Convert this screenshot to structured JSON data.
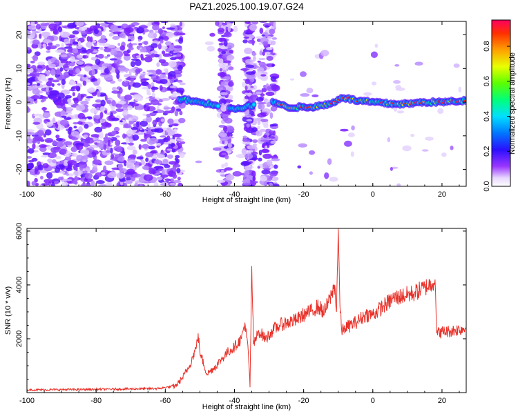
{
  "chart_data": [
    {
      "type": "heatmap",
      "title": "PAZ1.2025.100.19.07.G24",
      "xlabel": "Height of straight line (km)",
      "ylabel": "Frequency (Hz)",
      "xlim": [
        -100,
        27
      ],
      "ylim": [
        -25,
        24
      ],
      "xticks": [
        "-100",
        "-80",
        "-60",
        "-40",
        "-20",
        "0",
        "20"
      ],
      "yticks": [
        "-20",
        "-10",
        "0",
        "10",
        "20"
      ],
      "colorbar": {
        "label": "Normalized spectral amplitude",
        "range": [
          0,
          0.95
        ],
        "ticks": [
          "0.0",
          "0.2",
          "0.4",
          "0.6",
          "0.8"
        ],
        "colormap": "rainbow (white-magenta-purple-blue-cyan-green-yellow-orange-red)"
      },
      "features": {
        "noise_region_x": [
          -100,
          -55
        ],
        "noise_bands_x": [
          [
            -44,
            -41
          ],
          [
            -37,
            -34
          ],
          [
            -33,
            -28
          ]
        ],
        "signal_ridge": [
          {
            "x": -56,
            "y": 1
          },
          {
            "x": -50,
            "y": 0
          },
          {
            "x": -44,
            "y": -1
          },
          {
            "x": -39,
            "y": -2
          },
          {
            "x": -35,
            "y": -1
          },
          {
            "x": -28,
            "y": 0
          },
          {
            "x": -25,
            "y": -1.5
          },
          {
            "x": -18,
            "y": -1.5
          },
          {
            "x": -12,
            "y": -0.5
          },
          {
            "x": -9,
            "y": 1.5
          },
          {
            "x": -5,
            "y": 0.5
          },
          {
            "x": 0,
            "y": 0
          },
          {
            "x": 5,
            "y": -0.5
          },
          {
            "x": 10,
            "y": -0.5
          },
          {
            "x": 15,
            "y": 0
          },
          {
            "x": 20,
            "y": 0
          },
          {
            "x": 27,
            "y": 0.5
          }
        ]
      }
    },
    {
      "type": "line",
      "xlabel": "Height of straight line (km)",
      "ylabel": "SNR (10 * v/v)",
      "xlim": [
        -100,
        27
      ],
      "ylim": [
        0,
        6100
      ],
      "xticks": [
        "-100",
        "-80",
        "-60",
        "-40",
        "-20",
        "0",
        "20"
      ],
      "yticks": [
        "2000",
        "4000",
        "6000"
      ],
      "color": "#e8322a",
      "series": [
        {
          "x": [
            -100,
            -80,
            -62,
            -57,
            -55,
            -53,
            -51,
            -50.5,
            -50,
            -48,
            -46,
            -44,
            -42,
            -40,
            -38,
            -37,
            -36,
            -35.5,
            -35,
            -34.5,
            -34,
            -33,
            -31,
            -29,
            -27,
            -25,
            -22,
            -20,
            -18,
            -16,
            -14,
            -12,
            -11,
            -10.5,
            -10,
            -9.5,
            -9,
            -8,
            -5,
            -2,
            0,
            3,
            6,
            9,
            12,
            15,
            17,
            18,
            18.5,
            20,
            23,
            27
          ],
          "y": [
            100,
            120,
            150,
            250,
            550,
            1000,
            1700,
            2200,
            1500,
            700,
            900,
            1200,
            1500,
            1700,
            2000,
            2600,
            1500,
            200,
            4700,
            1800,
            1900,
            2300,
            2000,
            2300,
            2500,
            2600,
            2700,
            2900,
            3000,
            3200,
            3000,
            3600,
            4000,
            3000,
            6100,
            3200,
            2300,
            2400,
            2600,
            2900,
            2900,
            3200,
            3500,
            3600,
            3700,
            3900,
            4050,
            4200,
            2200,
            2250,
            2300,
            2400
          ]
        }
      ]
    }
  ]
}
